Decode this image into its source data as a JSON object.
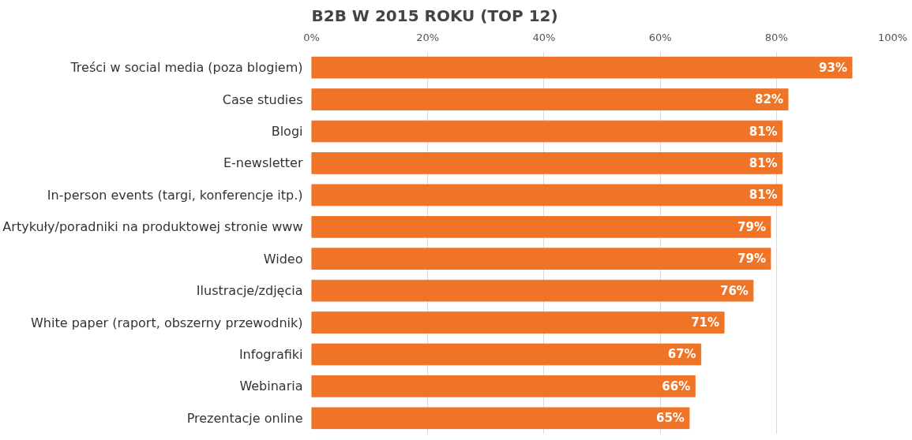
{
  "chart_data": {
    "type": "bar",
    "orientation": "horizontal",
    "title": "B2B W 2015 ROKU (TOP 12)",
    "categories": [
      "Treści w social media (poza blogiem)",
      "Case studies",
      "Blogi",
      "E-newsletter",
      "In-person events (targi, konferencje itp.)",
      "Artykuły/poradniki na produktowej stronie www",
      "Wideo",
      "Ilustracje/zdjęcia",
      "White paper (raport, obszerny przewodnik)",
      "Infografiki",
      "Webinaria",
      "Prezentacje online"
    ],
    "values": [
      93,
      82,
      81,
      81,
      81,
      79,
      79,
      76,
      71,
      67,
      66,
      65
    ],
    "color": "#f07427",
    "xlim": [
      0,
      100
    ],
    "xticks": [
      {
        "value": 0,
        "label": "0%"
      },
      {
        "value": 20,
        "label": "20%"
      },
      {
        "value": 40,
        "label": "40%"
      },
      {
        "value": 60,
        "label": "60%"
      },
      {
        "value": 80,
        "label": "80%"
      },
      {
        "value": 100,
        "label": "100%"
      }
    ],
    "value_labels": [
      "93%",
      "82%",
      "81%",
      "81%",
      "81%",
      "79%",
      "79%",
      "76%",
      "71%",
      "67%",
      "66%",
      "65%"
    ],
    "grid": "x"
  }
}
